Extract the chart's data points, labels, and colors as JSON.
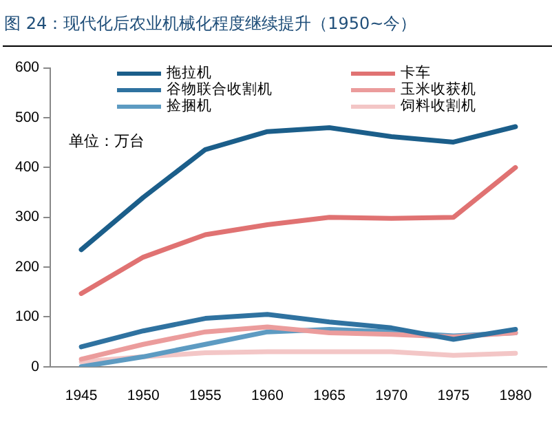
{
  "chart_data": {
    "type": "line",
    "title": "图 24：现代化后农业机械化程度继续提升（1950~今）",
    "annotations": [
      "单位：万台"
    ],
    "categories": [
      "1945",
      "1950",
      "1955",
      "1960",
      "1965",
      "1970",
      "1975",
      "1980"
    ],
    "ylim": [
      0,
      600
    ],
    "yticks": [
      0,
      100,
      200,
      300,
      400,
      500,
      600
    ],
    "grid": false,
    "legend": "top",
    "marker": "none",
    "series": [
      {
        "name": "拖拉机",
        "color": "#1b5e8a",
        "values": [
          235,
          340,
          436,
          472,
          480,
          462,
          451,
          482
        ]
      },
      {
        "name": "卡车",
        "color": "#e07272",
        "values": [
          147,
          220,
          265,
          285,
          300,
          298,
          300,
          400
        ]
      },
      {
        "name": "谷物联合收割机",
        "color": "#2f72a0",
        "values": [
          40,
          72,
          97,
          105,
          90,
          78,
          55,
          75
        ]
      },
      {
        "name": "玉米收获机",
        "color": "#eb9c9c",
        "values": [
          15,
          45,
          70,
          80,
          68,
          65,
          60,
          68
        ]
      },
      {
        "name": "捡捆机",
        "color": "#5d9bc2",
        "values": [
          0,
          20,
          45,
          70,
          75,
          70,
          62,
          68
        ]
      },
      {
        "name": "饲料收割机",
        "color": "#f3c6c6",
        "values": [
          10,
          20,
          28,
          30,
          30,
          30,
          23,
          27
        ]
      }
    ]
  }
}
